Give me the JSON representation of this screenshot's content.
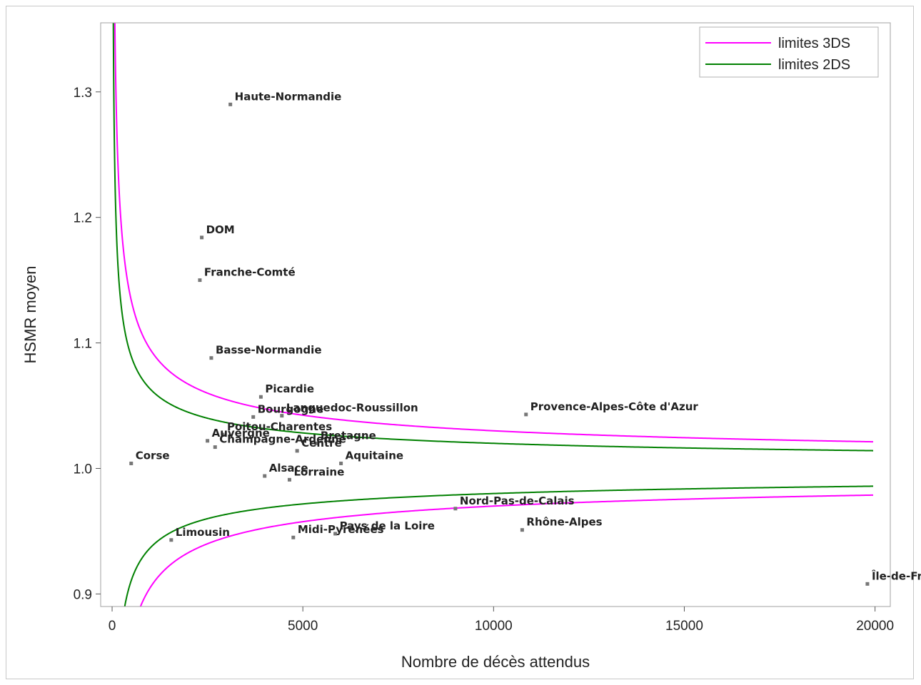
{
  "chart_data": {
    "type": "scatter",
    "title": "",
    "xlabel": "Nombre de décès attendus",
    "ylabel": "HSMR moyen",
    "xlim": [
      -300,
      20400
    ],
    "ylim": [
      0.89,
      1.355
    ],
    "xticks": [
      0,
      5000,
      10000,
      15000,
      20000
    ],
    "xtick_labels": [
      "0",
      "5000",
      "10000",
      "15000",
      "20000"
    ],
    "yticks": [
      0.9,
      1.0,
      1.1,
      1.2,
      1.3
    ],
    "ytick_labels": [
      "0.9",
      "1.0",
      "1.1",
      "1.2",
      "1.3"
    ],
    "grid": false,
    "legend_position": "top-right",
    "limits": [
      {
        "name": "limites 3DS",
        "color": "#ff00ff",
        "z": 3
      },
      {
        "name": "limites 2DS",
        "color": "#008000",
        "z": 2
      }
    ],
    "points": [
      {
        "label": "Haute-Normandie",
        "x": 3100,
        "y": 1.29
      },
      {
        "label": "DOM",
        "x": 2350,
        "y": 1.184
      },
      {
        "label": "Franche-Comté",
        "x": 2300,
        "y": 1.15
      },
      {
        "label": "Basse-Normandie",
        "x": 2600,
        "y": 1.088
      },
      {
        "label": "Poitou-Charentes",
        "x": 2900,
        "y": 1.027
      },
      {
        "label": "Picardie",
        "x": 3900,
        "y": 1.057
      },
      {
        "label": "Bourgogne",
        "x": 3700,
        "y": 1.041
      },
      {
        "label": "Languedoc-Roussillon",
        "x": 4450,
        "y": 1.042
      },
      {
        "label": "Provence-Alpes-Côte d'Azur",
        "x": 10850,
        "y": 1.043
      },
      {
        "label": "Auvergne",
        "x": 2500,
        "y": 1.022
      },
      {
        "label": "Bretagne",
        "x": 5350,
        "y": 1.02
      },
      {
        "label": "Champagne-Ardenne",
        "x": 2700,
        "y": 1.017
      },
      {
        "label": "Centre",
        "x": 4850,
        "y": 1.014
      },
      {
        "label": "Corse",
        "x": 500,
        "y": 1.004
      },
      {
        "label": "Aquitaine",
        "x": 6000,
        "y": 1.004
      },
      {
        "label": "Alsace",
        "x": 4000,
        "y": 0.994
      },
      {
        "label": "Lorraine",
        "x": 4650,
        "y": 0.991
      },
      {
        "label": "Nord-Pas-de-Calais",
        "x": 9000,
        "y": 0.968
      },
      {
        "label": "Rhône-Alpes",
        "x": 10750,
        "y": 0.951
      },
      {
        "label": "Limousin",
        "x": 1550,
        "y": 0.943
      },
      {
        "label": "Pays de la Loire",
        "x": 5850,
        "y": 0.948
      },
      {
        "label": "Midi-Pyrénées",
        "x": 4750,
        "y": 0.945
      },
      {
        "label": "Île-de-France",
        "x": 19800,
        "y": 0.908
      }
    ]
  }
}
